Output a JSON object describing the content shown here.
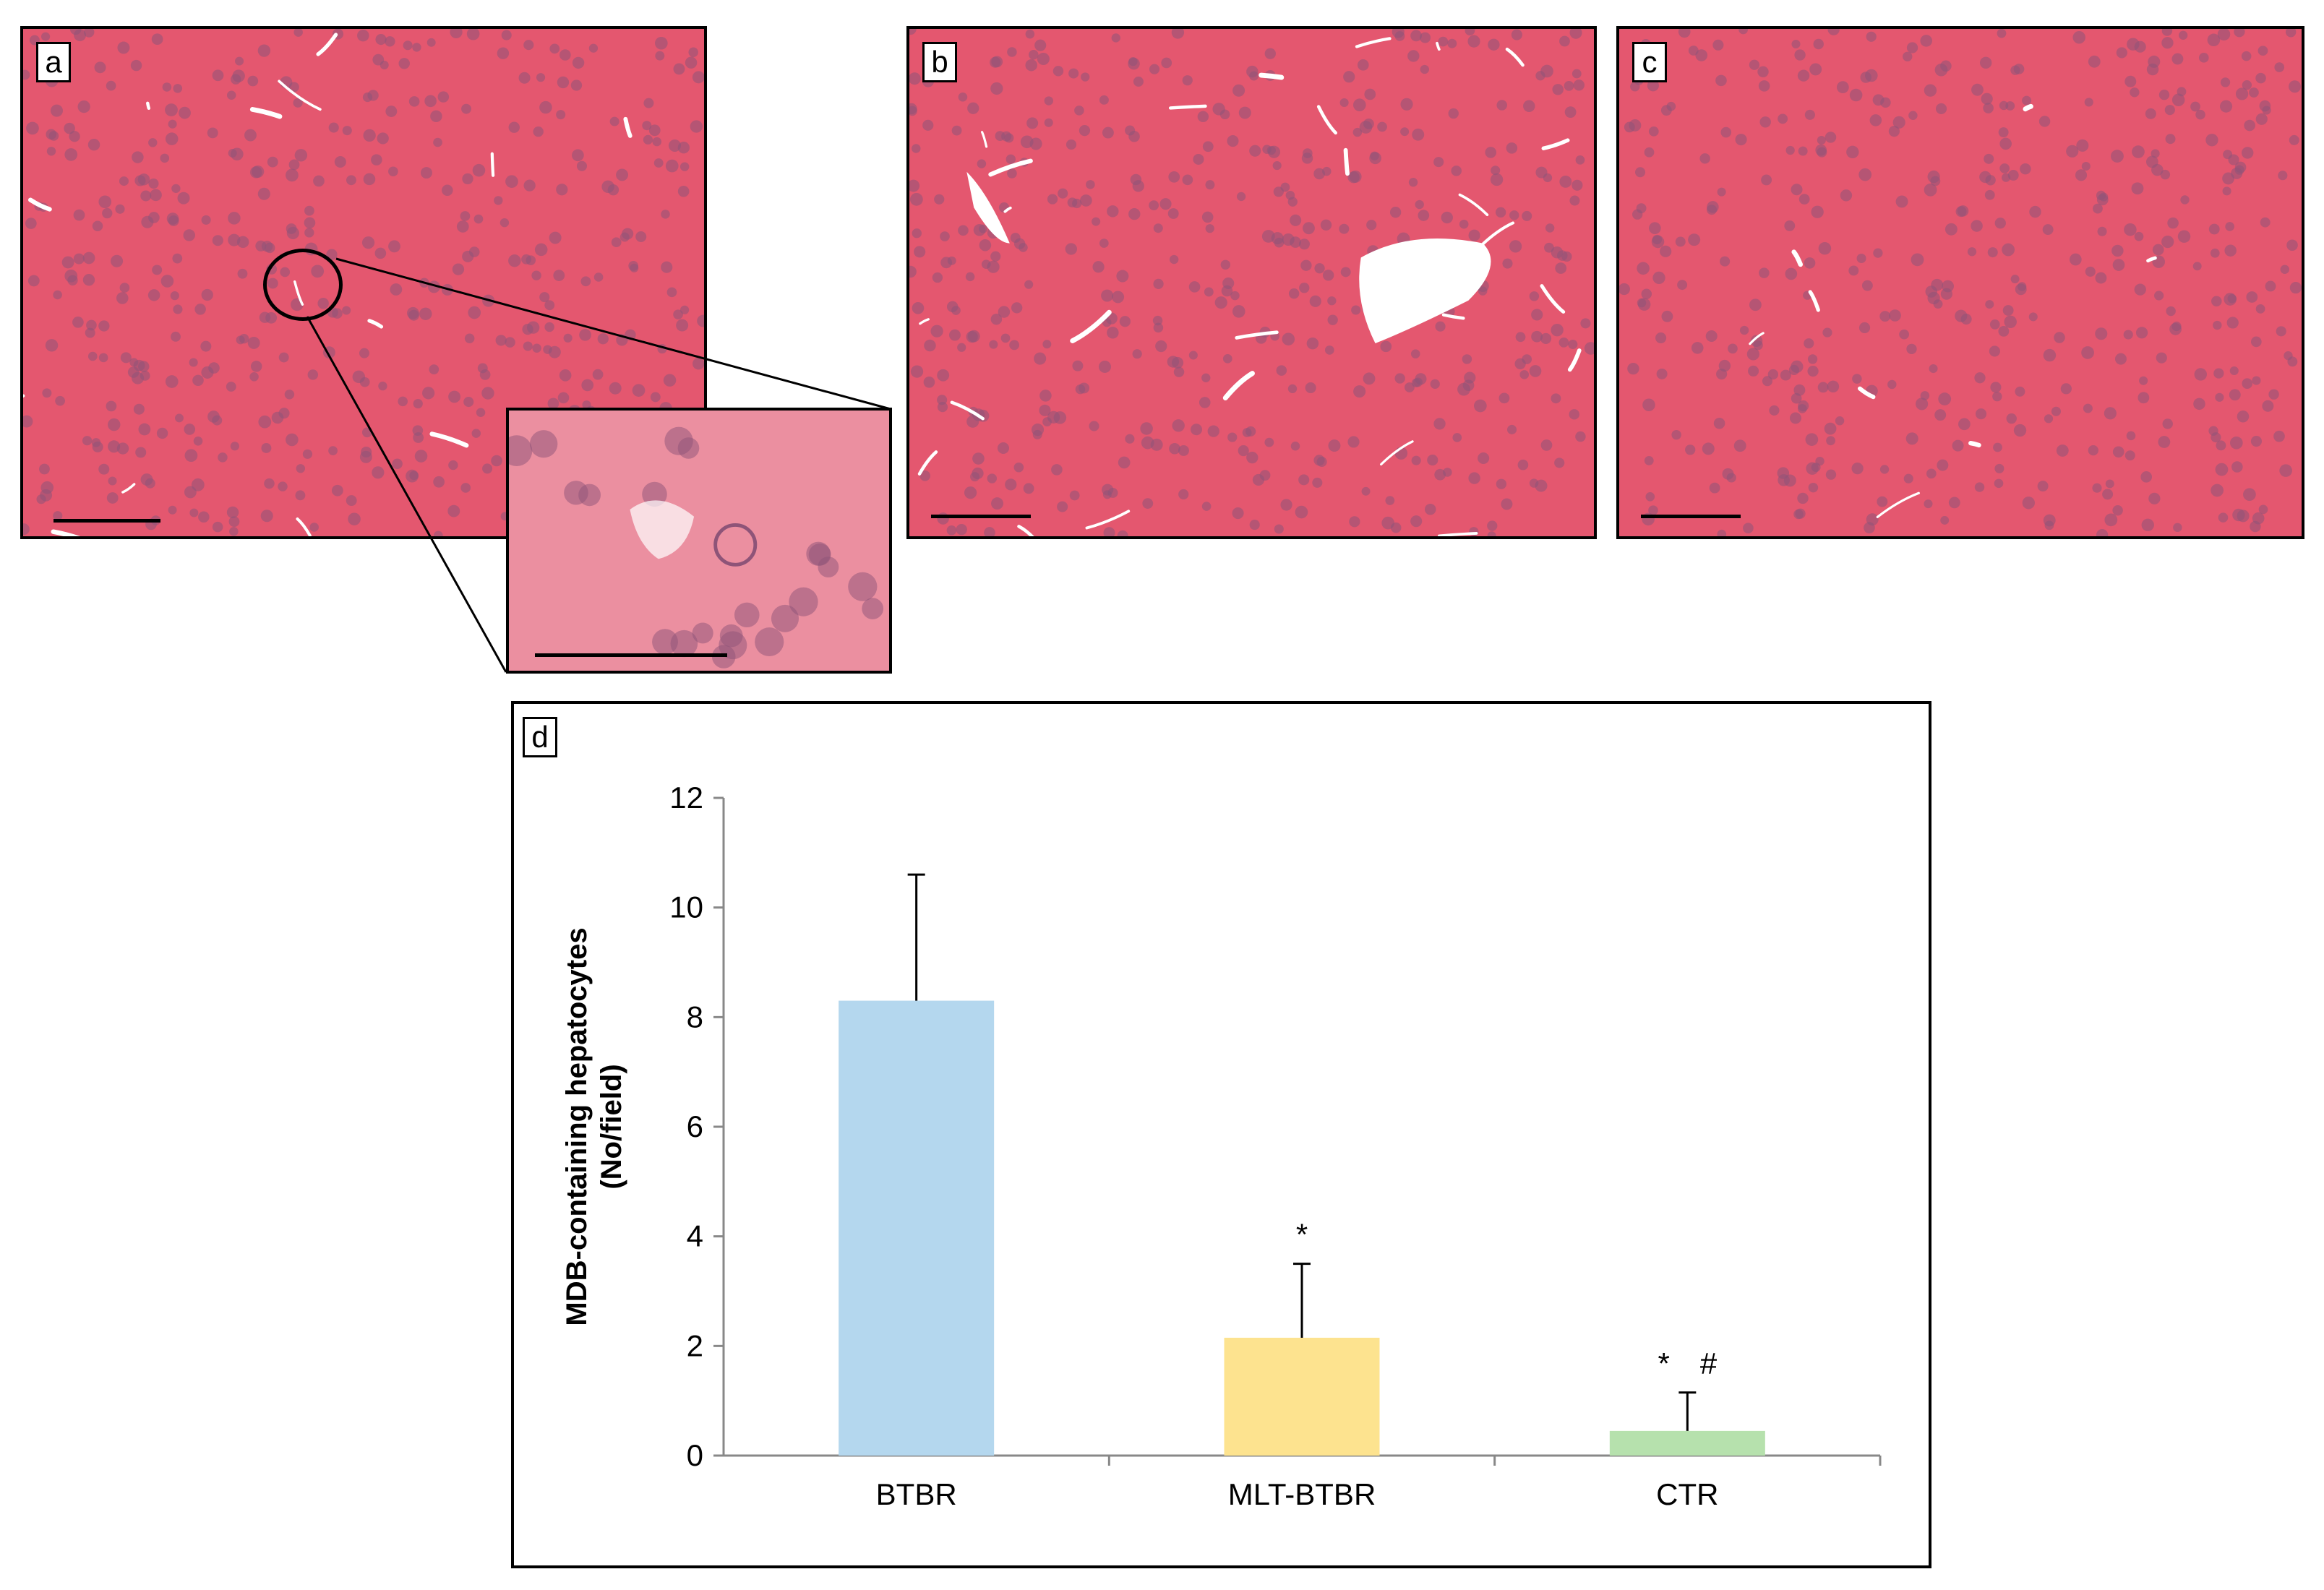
{
  "panels": [
    {
      "label": "a"
    },
    {
      "label": "b"
    },
    {
      "label": "c"
    }
  ],
  "chart_label": "d",
  "colors": {
    "tissue": "#e4576f",
    "bar_btbr": "#b4d7ee",
    "bar_mlt": "#fde38f",
    "bar_ctr": "#b6e1ad"
  },
  "chart_data": {
    "type": "bar",
    "categories": [
      "BTBR",
      "MLT-BTBR",
      "CTR"
    ],
    "values": [
      8.3,
      2.15,
      0.45
    ],
    "errors": [
      2.3,
      1.35,
      0.7
    ],
    "annotations": [
      "",
      "*",
      "* #"
    ],
    "ylabel_line1": "MDB-containing hepatocytes",
    "ylabel_line2": "(No/field)",
    "ylim": [
      0,
      12
    ],
    "yticks": [
      "0",
      "2",
      "4",
      "6",
      "8",
      "10",
      "12"
    ],
    "grid": false,
    "legend": "none"
  }
}
